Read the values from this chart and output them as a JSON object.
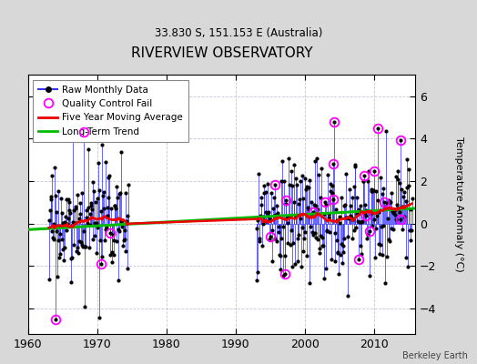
{
  "title": "RIVERVIEW OBSERVATORY",
  "subtitle": "33.830 S, 151.153 E (Australia)",
  "ylabel": "Temperature Anomaly (°C)",
  "credit": "Berkeley Earth",
  "xlim": [
    1960,
    2016
  ],
  "ylim": [
    -5.2,
    7.0
  ],
  "yticks": [
    -4,
    -2,
    0,
    2,
    4,
    6
  ],
  "xticks": [
    1960,
    1970,
    1980,
    1990,
    2000,
    2010
  ],
  "bg_color": "#d8d8d8",
  "plot_bg_color": "#ffffff",
  "line_color": "#3333ff",
  "trend_color": "#00bb00",
  "mavg_color": "#ee0000",
  "qc_color": "#ff00ff",
  "period1_start": 1963.0,
  "period1_end": 1974.5,
  "period2_start": 1993.0,
  "period2_end": 2015.5,
  "seed": 17
}
